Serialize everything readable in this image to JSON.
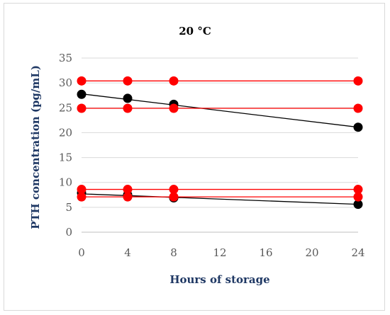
{
  "chart_data": {
    "type": "scatter",
    "title": "20 °C",
    "xlabel": "Hours of storage",
    "ylabel": "PTH concentration (pg/mL)",
    "xlim": [
      0,
      24
    ],
    "ylim": [
      0,
      35
    ],
    "xticks": [
      0,
      4,
      8,
      12,
      16,
      20,
      24
    ],
    "yticks": [
      0,
      5,
      10,
      15,
      20,
      25,
      30,
      35
    ],
    "grid": "horizontal",
    "legend": "none",
    "series": [
      {
        "color": "#000000",
        "style": "measured",
        "x": [
          0,
          4,
          8,
          24
        ],
        "y": [
          27.7,
          26.9,
          25.7,
          21.1
        ],
        "fit_line": {
          "x": [
            0,
            24
          ],
          "y": [
            27.8,
            21.1
          ]
        }
      },
      {
        "color": "#000000",
        "style": "measured",
        "x": [
          0,
          4,
          8,
          24
        ],
        "y": [
          7.9,
          7.5,
          6.9,
          5.6
        ],
        "fit_line": {
          "x": [
            0,
            24
          ],
          "y": [
            7.7,
            5.6
          ]
        }
      },
      {
        "color": "#ff0000",
        "style": "limit",
        "x": [
          0,
          4,
          8,
          24
        ],
        "y": [
          30.4,
          30.4,
          30.4,
          30.4
        ]
      },
      {
        "color": "#ff0000",
        "style": "limit",
        "x": [
          0,
          4,
          8,
          24
        ],
        "y": [
          24.9,
          24.9,
          24.9,
          24.9
        ]
      },
      {
        "color": "#ff0000",
        "style": "limit",
        "x": [
          0,
          4,
          8,
          24
        ],
        "y": [
          8.6,
          8.6,
          8.6,
          8.6
        ]
      },
      {
        "color": "#ff0000",
        "style": "limit",
        "x": [
          0,
          4,
          8,
          24
        ],
        "y": [
          7.1,
          7.1,
          7.1,
          7.1
        ]
      }
    ]
  }
}
